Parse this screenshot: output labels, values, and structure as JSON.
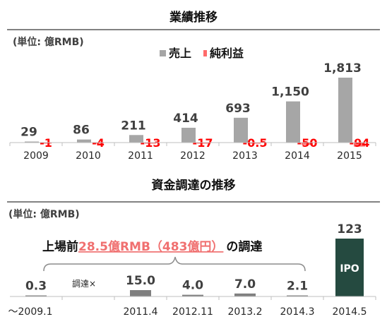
{
  "chart_data": [
    {
      "type": "bar",
      "title": "業績推移",
      "unit_label": "(単位: 億RMB)",
      "categories": [
        "2009",
        "2010",
        "2011",
        "2012",
        "2013",
        "2014",
        "2015"
      ],
      "series": [
        {
          "name": "売上",
          "color": "#a6a6a6",
          "values": [
            29,
            86,
            211,
            414,
            693,
            1150,
            1813
          ],
          "labels": [
            "29",
            "86",
            "211",
            "414",
            "693",
            "1,150",
            "1,813"
          ]
        },
        {
          "name": "純利益",
          "color": "#ff6b6b",
          "values": [
            -1,
            -4,
            -13,
            -17,
            -0.5,
            -50,
            -94
          ],
          "labels": [
            "-1",
            "-4",
            "-13",
            "-17",
            "-0.5",
            "-50",
            "-94"
          ]
        }
      ]
    },
    {
      "type": "bar",
      "title": "資金調達の推移",
      "unit_label": "(単位: 億RMB)",
      "categories": [
        "～2009.1",
        "",
        "2011.4",
        "2012.11",
        "2013.2",
        "2014.3",
        "2014.5"
      ],
      "values": [
        0.3,
        null,
        15.0,
        4.0,
        7.0,
        2.1,
        123
      ],
      "labels": [
        "0.3",
        "調達×",
        "15.0",
        "4.0",
        "7.0",
        "2.1",
        "123"
      ],
      "bar_color": "#7f7f7f",
      "ipo_color": "#254a40",
      "ipo_label": "IPO",
      "annotation": {
        "prefix": "上場前",
        "amount": "28.5億RMB（483億円）",
        "suffix": "の調達"
      }
    }
  ]
}
